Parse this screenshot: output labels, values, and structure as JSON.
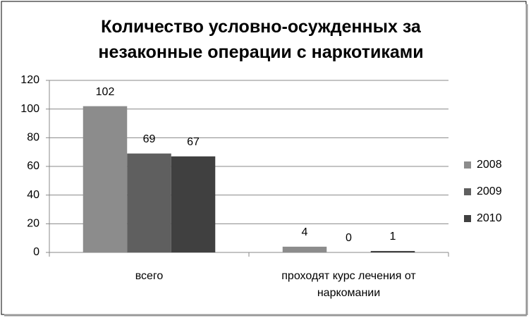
{
  "chart_data": {
    "type": "bar",
    "title": "Количество условно-осужденных за незаконные операции с наркотиками",
    "categories": [
      "всего",
      "проходят курс лечения от наркомании"
    ],
    "series": [
      {
        "name": "2008",
        "color": "#8c8c8c",
        "values": [
          102,
          4
        ]
      },
      {
        "name": "2009",
        "color": "#5f5f5f",
        "values": [
          69,
          0
        ]
      },
      {
        "name": "2010",
        "color": "#404040",
        "values": [
          67,
          1
        ]
      }
    ],
    "ylim": [
      0,
      120
    ],
    "yticks": [
      0,
      20,
      40,
      60,
      80,
      100,
      120
    ],
    "grid": true,
    "legend": "right"
  }
}
